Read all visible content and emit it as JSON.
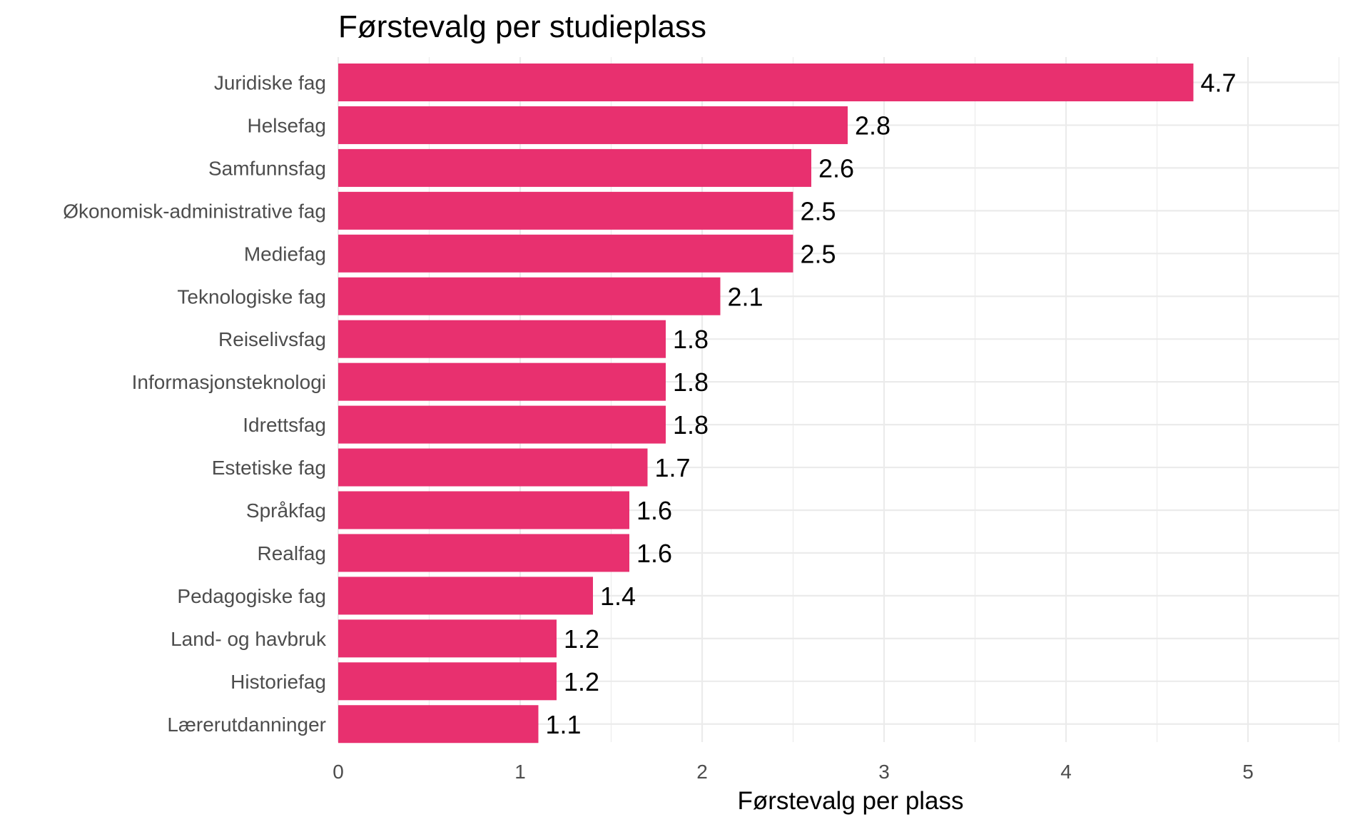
{
  "chart_data": {
    "type": "bar",
    "orientation": "horizontal",
    "title": "Førstevalg per studieplass",
    "xlabel": "Førstevalg per plass",
    "ylabel": "",
    "categories": [
      "Juridiske fag",
      "Helsefag",
      "Samfunnsfag",
      "Økonomisk-administrative fag",
      "Mediefag",
      "Teknologiske fag",
      "Reiselivsfag",
      "Informasjonsteknologi",
      "Idrettsfag",
      "Estetiske fag",
      "Språkfag",
      "Realfag",
      "Pedagogiske fag",
      "Land- og havbruk",
      "Historiefag",
      "Lærerutdanninger"
    ],
    "values": [
      4.7,
      2.8,
      2.6,
      2.5,
      2.5,
      2.1,
      1.8,
      1.8,
      1.8,
      1.7,
      1.6,
      1.6,
      1.4,
      1.2,
      1.2,
      1.1
    ],
    "value_labels": [
      "4.7",
      "2.8",
      "2.6",
      "2.5",
      "2.5",
      "2.1",
      "1.8",
      "1.8",
      "1.8",
      "1.7",
      "1.6",
      "1.6",
      "1.4",
      "1.2",
      "1.2",
      "1.1"
    ],
    "x_ticks": [
      "0",
      "1",
      "2",
      "3",
      "4",
      "5"
    ],
    "xlim": [
      0,
      5.5
    ],
    "grid": true,
    "legend": "none",
    "bar_color": "#e8306f"
  }
}
